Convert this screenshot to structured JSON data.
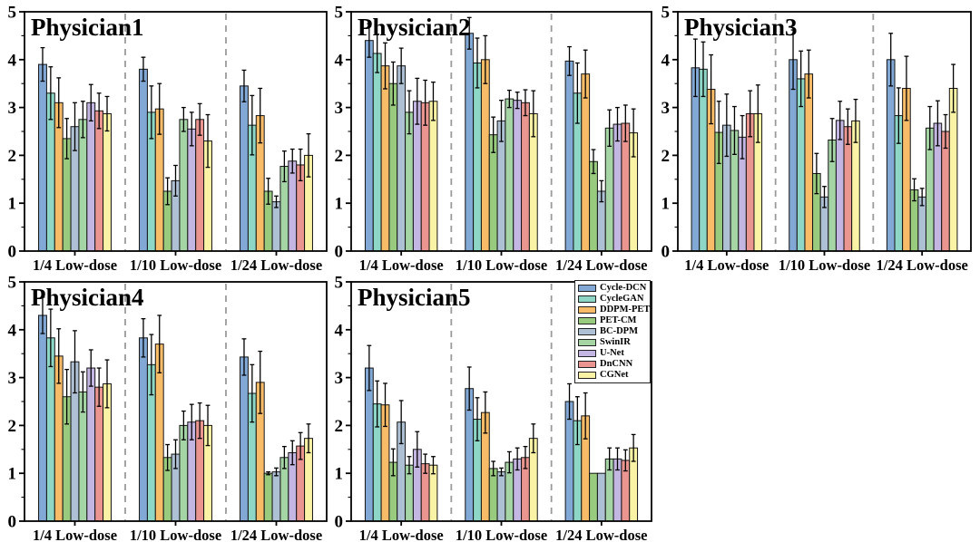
{
  "legend": {
    "items": [
      {
        "label": "Cycle-DCN",
        "color": "#82A9D6"
      },
      {
        "label": "CycleGAN",
        "color": "#8ED7C6"
      },
      {
        "label": "DDPM-PET",
        "color": "#F8BC68"
      },
      {
        "label": "PET-CM",
        "color": "#99CB7F"
      },
      {
        "label": "BC-DPM",
        "color": "#AEC0D4"
      },
      {
        "label": "SwinIR",
        "color": "#A5D5A5"
      },
      {
        "label": "U-Net",
        "color": "#C4B6E2"
      },
      {
        "label": "DnCNN",
        "color": "#EA958F"
      },
      {
        "label": "CGNet",
        "color": "#FAF3A6"
      }
    ]
  },
  "chart_data": {
    "type": "bar",
    "categories": [
      "1/4 Low-dose",
      "1/10 Low-dose",
      "1/24 Low-dose"
    ],
    "ylim": [
      0,
      5
    ],
    "yticks": [
      0,
      1,
      2,
      3,
      4,
      5
    ],
    "grid": false,
    "error_bars": true,
    "group_separator_style": "dashed-gray",
    "legend_position": "top-right-of-Physician5-panel",
    "panels": [
      {
        "title": "Physician1",
        "series": [
          {
            "name": "Cycle-DCN",
            "values": [
              3.9,
              3.8,
              3.45
            ],
            "errors": [
              0.35,
              0.25,
              0.33
            ]
          },
          {
            "name": "CycleGAN",
            "values": [
              3.3,
              2.9,
              2.63
            ],
            "errors": [
              0.55,
              0.55,
              0.62
            ]
          },
          {
            "name": "DDPM-PET",
            "values": [
              3.1,
              2.97,
              2.83
            ],
            "errors": [
              0.52,
              0.53,
              0.57
            ]
          },
          {
            "name": "PET-CM",
            "values": [
              2.35,
              1.25,
              1.25
            ],
            "errors": [
              0.42,
              0.28,
              0.27
            ]
          },
          {
            "name": "BC-DPM",
            "values": [
              2.6,
              1.47,
              1.03
            ],
            "errors": [
              0.5,
              0.32,
              0.12
            ]
          },
          {
            "name": "SwinIR",
            "values": [
              2.75,
              2.75,
              1.77
            ],
            "errors": [
              0.38,
              0.25,
              0.32
            ]
          },
          {
            "name": "U-Net",
            "values": [
              3.1,
              2.55,
              1.88
            ],
            "errors": [
              0.38,
              0.35,
              0.25
            ]
          },
          {
            "name": "DnCNN",
            "values": [
              2.93,
              2.75,
              1.8
            ],
            "errors": [
              0.37,
              0.33,
              0.33
            ]
          },
          {
            "name": "CGNet",
            "values": [
              2.87,
              2.3,
              2.0
            ],
            "errors": [
              0.36,
              0.55,
              0.45
            ]
          }
        ]
      },
      {
        "title": "Physician2",
        "series": [
          {
            "name": "Cycle-DCN",
            "values": [
              4.4,
              4.55,
              3.97
            ],
            "errors": [
              0.35,
              0.33,
              0.3
            ]
          },
          {
            "name": "CycleGAN",
            "values": [
              4.13,
              3.93,
              3.3
            ],
            "errors": [
              0.4,
              0.52,
              0.63
            ]
          },
          {
            "name": "DDPM-PET",
            "values": [
              3.87,
              4.0,
              3.7
            ],
            "errors": [
              0.48,
              0.5,
              0.5
            ]
          },
          {
            "name": "PET-CM",
            "values": [
              3.5,
              2.43,
              1.87
            ],
            "errors": [
              0.45,
              0.37,
              0.25
            ]
          },
          {
            "name": "BC-DPM",
            "values": [
              3.87,
              2.72,
              1.25
            ],
            "errors": [
              0.37,
              0.43,
              0.22
            ]
          },
          {
            "name": "SwinIR",
            "values": [
              2.9,
              3.18,
              2.57
            ],
            "errors": [
              0.45,
              0.18,
              0.38
            ]
          },
          {
            "name": "U-Net",
            "values": [
              3.13,
              3.15,
              2.65
            ],
            "errors": [
              0.48,
              0.17,
              0.35
            ]
          },
          {
            "name": "DnCNN",
            "values": [
              3.1,
              3.1,
              2.67
            ],
            "errors": [
              0.47,
              0.27,
              0.38
            ]
          },
          {
            "name": "CGNet",
            "values": [
              3.13,
              2.87,
              2.47
            ],
            "errors": [
              0.4,
              0.48,
              0.5
            ]
          }
        ]
      },
      {
        "title": "Physician3",
        "series": [
          {
            "name": "Cycle-DCN",
            "values": [
              3.83,
              4.0,
              4.0
            ],
            "errors": [
              0.6,
              0.62,
              0.55
            ]
          },
          {
            "name": "CycleGAN",
            "values": [
              3.8,
              3.6,
              2.83
            ],
            "errors": [
              0.57,
              0.58,
              0.58
            ]
          },
          {
            "name": "DDPM-PET",
            "values": [
              3.38,
              3.7,
              3.4
            ],
            "errors": [
              0.72,
              0.5,
              0.67
            ]
          },
          {
            "name": "PET-CM",
            "values": [
              2.48,
              1.62,
              1.28
            ],
            "errors": [
              0.65,
              0.42,
              0.23
            ]
          },
          {
            "name": "BC-DPM",
            "values": [
              2.63,
              1.13,
              1.13
            ],
            "errors": [
              0.65,
              0.22,
              0.18
            ]
          },
          {
            "name": "SwinIR",
            "values": [
              2.52,
              2.32,
              2.57
            ],
            "errors": [
              0.5,
              0.45,
              0.45
            ]
          },
          {
            "name": "U-Net",
            "values": [
              2.38,
              2.73,
              2.67
            ],
            "errors": [
              0.45,
              0.4,
              0.47
            ]
          },
          {
            "name": "DnCNN",
            "values": [
              2.87,
              2.6,
              2.5
            ],
            "errors": [
              0.48,
              0.37,
              0.35
            ]
          },
          {
            "name": "CGNet",
            "values": [
              2.87,
              2.72,
              3.4
            ],
            "errors": [
              0.6,
              0.45,
              0.5
            ]
          }
        ]
      },
      {
        "title": "Physician4",
        "series": [
          {
            "name": "Cycle-DCN",
            "values": [
              4.3,
              3.83,
              3.43
            ],
            "errors": [
              0.38,
              0.4,
              0.38
            ]
          },
          {
            "name": "CycleGAN",
            "values": [
              3.83,
              3.27,
              2.67
            ],
            "errors": [
              0.6,
              0.63,
              0.6
            ]
          },
          {
            "name": "DDPM-PET",
            "values": [
              3.45,
              3.7,
              2.9
            ],
            "errors": [
              0.57,
              0.6,
              0.65
            ]
          },
          {
            "name": "PET-CM",
            "values": [
              2.6,
              1.33,
              1.0
            ],
            "errors": [
              0.57,
              0.27,
              0.03
            ]
          },
          {
            "name": "BC-DPM",
            "values": [
              3.33,
              1.4,
              1.03
            ],
            "errors": [
              0.65,
              0.3,
              0.08
            ]
          },
          {
            "name": "SwinIR",
            "values": [
              2.7,
              2.0,
              1.33
            ],
            "errors": [
              0.42,
              0.3,
              0.23
            ]
          },
          {
            "name": "U-Net",
            "values": [
              3.2,
              2.07,
              1.43
            ],
            "errors": [
              0.38,
              0.37,
              0.25
            ]
          },
          {
            "name": "DnCNN",
            "values": [
              2.8,
              2.1,
              1.57
            ],
            "errors": [
              0.4,
              0.37,
              0.28
            ]
          },
          {
            "name": "CGNet",
            "values": [
              2.87,
              2.0,
              1.73
            ],
            "errors": [
              0.5,
              0.42,
              0.3
            ]
          }
        ]
      },
      {
        "title": "Physician5",
        "series": [
          {
            "name": "Cycle-DCN",
            "values": [
              3.2,
              2.77,
              2.5
            ],
            "errors": [
              0.47,
              0.45,
              0.37
            ]
          },
          {
            "name": "CycleGAN",
            "values": [
              2.45,
              2.13,
              2.1
            ],
            "errors": [
              0.48,
              0.45,
              0.5
            ]
          },
          {
            "name": "DDPM-PET",
            "values": [
              2.43,
              2.27,
              2.2
            ],
            "errors": [
              0.45,
              0.43,
              0.48
            ]
          },
          {
            "name": "PET-CM",
            "values": [
              1.23,
              1.1,
              1.0
            ],
            "errors": [
              0.28,
              0.15,
              0
            ]
          },
          {
            "name": "BC-DPM",
            "values": [
              2.07,
              1.03,
              1.0
            ],
            "errors": [
              0.45,
              0.08,
              0
            ]
          },
          {
            "name": "SwinIR",
            "values": [
              1.17,
              1.23,
              1.3
            ],
            "errors": [
              0.18,
              0.22,
              0.23
            ]
          },
          {
            "name": "U-Net",
            "values": [
              1.5,
              1.3,
              1.3
            ],
            "errors": [
              0.37,
              0.23,
              0.23
            ]
          },
          {
            "name": "DnCNN",
            "values": [
              1.2,
              1.33,
              1.27
            ],
            "errors": [
              0.2,
              0.23,
              0.22
            ]
          },
          {
            "name": "CGNet",
            "values": [
              1.17,
              1.73,
              1.53
            ],
            "errors": [
              0.18,
              0.3,
              0.28
            ]
          }
        ]
      }
    ]
  }
}
